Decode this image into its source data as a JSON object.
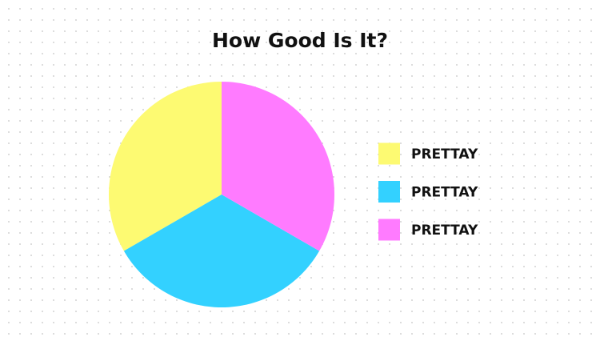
{
  "chart_data": {
    "type": "pie",
    "title": "How Good Is It?",
    "categories": [
      "PRETTAY",
      "PRETTAY",
      "PRETTAY"
    ],
    "values": [
      33.3,
      33.3,
      33.3
    ],
    "colors": [
      "#fdfa72",
      "#33d1ff",
      "#ff7bff"
    ]
  }
}
